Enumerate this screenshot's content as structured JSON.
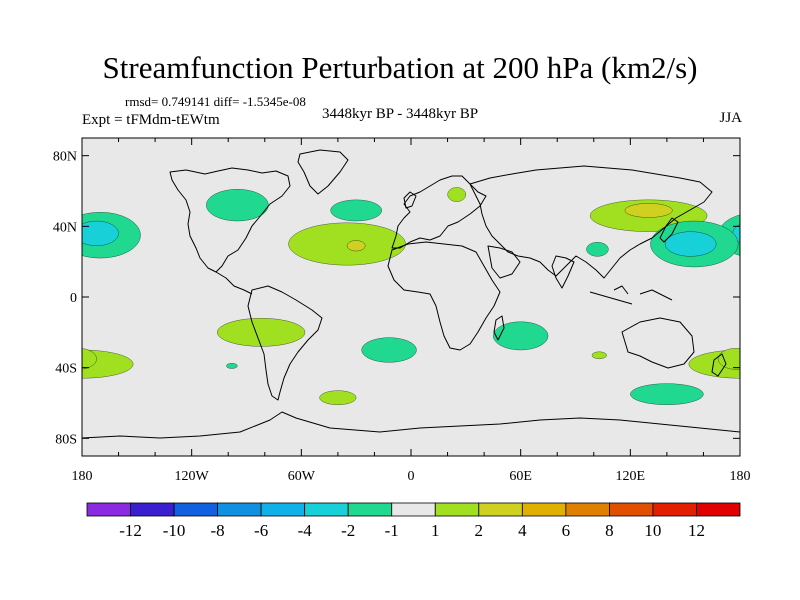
{
  "header": {
    "title": "Streamfunction Perturbation at 200 hPa (km2/s)",
    "stats": "rmsd= 0.749141 diff= -1.5345e-08",
    "experiment": "Expt = tFMdm-tEWtm",
    "period": "3448kyr BP - 3448kyr BP",
    "season": "JJA"
  },
  "chart_data": {
    "type": "heatmap",
    "title": "Streamfunction Perturbation at 200 hPa (km2/s)",
    "xlim": [
      -180,
      180
    ],
    "ylim": [
      -90,
      90
    ],
    "x_ticks": [
      {
        "value": -180,
        "label": "180"
      },
      {
        "value": -120,
        "label": "120W"
      },
      {
        "value": -60,
        "label": "60W"
      },
      {
        "value": 0,
        "label": "0"
      },
      {
        "value": 60,
        "label": "60E"
      },
      {
        "value": 120,
        "label": "120E"
      },
      {
        "value": 180,
        "label": "180"
      }
    ],
    "y_ticks": [
      {
        "value": 80,
        "label": "80N"
      },
      {
        "value": 40,
        "label": "40N"
      },
      {
        "value": 0,
        "label": "0"
      },
      {
        "value": -40,
        "label": "40S"
      },
      {
        "value": -80,
        "label": "80S"
      }
    ],
    "colorbar": {
      "levels": [
        -12,
        -10,
        -8,
        -6,
        -4,
        -2,
        -1,
        1,
        2,
        4,
        6,
        8,
        10,
        12
      ],
      "labels": [
        "-12",
        "-10",
        "-8",
        "-6",
        "-4",
        "-2",
        "-1",
        "1",
        "2",
        "4",
        "6",
        "8",
        "10",
        "12"
      ],
      "colors": [
        "#8a2be2",
        "#3a1fd0",
        "#1060e0",
        "#1090e0",
        "#10b0e8",
        "#18d0d8",
        "#20d890",
        "#e8e8e8",
        "#a0e020",
        "#d0d020",
        "#e0b000",
        "#e08000",
        "#e05000",
        "#e02000",
        "#e00000"
      ]
    },
    "contours": [
      {
        "lon": -170,
        "lat": 35,
        "rlon": 22,
        "rlat": 13,
        "color": "#20d890"
      },
      {
        "lon": -172,
        "lat": 36,
        "rlon": 12,
        "rlat": 7,
        "color": "#18d0d8"
      },
      {
        "lon": -95,
        "lat": 52,
        "rlon": 17,
        "rlat": 9,
        "color": "#20d890"
      },
      {
        "lon": -30,
        "lat": 49,
        "rlon": 14,
        "rlat": 6,
        "color": "#20d890"
      },
      {
        "lon": -35,
        "lat": 30,
        "rlon": 32,
        "rlat": 12,
        "color": "#a0e020"
      },
      {
        "lon": -30,
        "lat": 29,
        "rlon": 5,
        "rlat": 3,
        "color": "#d0d020"
      },
      {
        "lon": 25,
        "lat": 58,
        "rlon": 5,
        "rlat": 4,
        "color": "#a0e020"
      },
      {
        "lon": 130,
        "lat": 46,
        "rlon": 32,
        "rlat": 9,
        "color": "#a0e020"
      },
      {
        "lon": 130,
        "lat": 49,
        "rlon": 13,
        "rlat": 4,
        "color": "#d0d020"
      },
      {
        "lon": 102,
        "lat": 27,
        "rlon": 6,
        "rlat": 4,
        "color": "#20d890"
      },
      {
        "lon": 155,
        "lat": 30,
        "rlon": 24,
        "rlat": 13,
        "color": "#20d890"
      },
      {
        "lon": 153,
        "lat": 30,
        "rlon": 14,
        "rlat": 7,
        "color": "#18d0d8"
      },
      {
        "lon": -82,
        "lat": -20,
        "rlon": 24,
        "rlat": 8,
        "color": "#a0e020"
      },
      {
        "lon": -180,
        "lat": -38,
        "rlon": 28,
        "rlat": 8,
        "color": "#a0e020"
      },
      {
        "lon": -98,
        "lat": -39,
        "rlon": 3,
        "rlat": 1.5,
        "color": "#20d890"
      },
      {
        "lon": -12,
        "lat": -30,
        "rlon": 15,
        "rlat": 7,
        "color": "#20d890"
      },
      {
        "lon": 60,
        "lat": -22,
        "rlon": 15,
        "rlat": 8,
        "color": "#20d890"
      },
      {
        "lon": 103,
        "lat": -33,
        "rlon": 4,
        "rlat": 2,
        "color": "#a0e020"
      },
      {
        "lon": 178,
        "lat": -35,
        "rlon": 10,
        "rlat": 6,
        "color": "#a0e020"
      },
      {
        "lon": -40,
        "lat": -57,
        "rlon": 10,
        "rlat": 4,
        "color": "#a0e020"
      },
      {
        "lon": 140,
        "lat": -55,
        "rlon": 20,
        "rlat": 6,
        "color": "#20d890"
      }
    ]
  }
}
